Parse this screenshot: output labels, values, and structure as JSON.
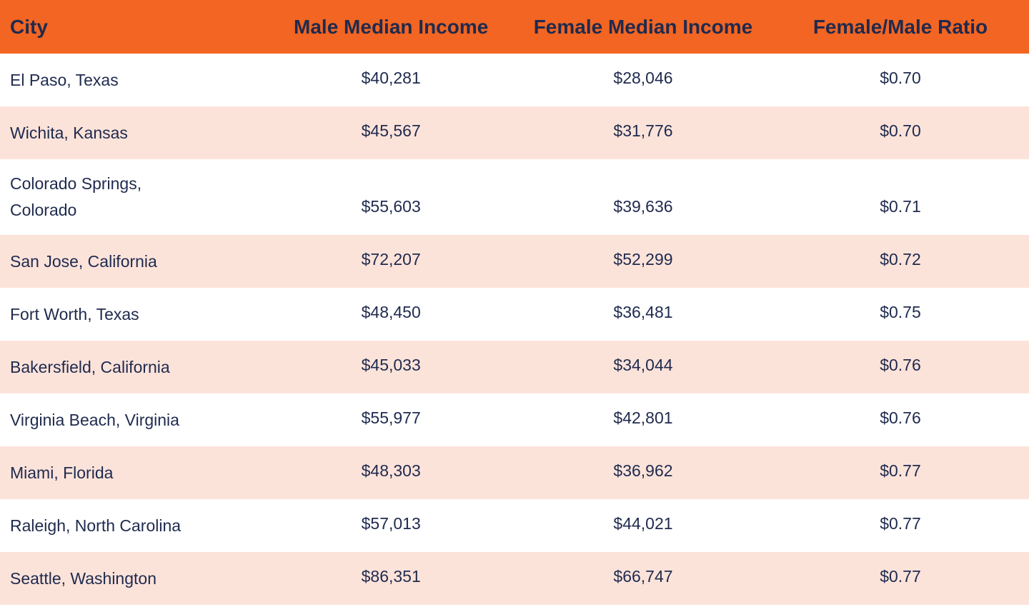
{
  "chart_data": {
    "type": "table",
    "columns": [
      "City",
      "Male Median Income",
      "Female Median Income",
      "Female/Male Ratio"
    ],
    "rows": [
      [
        "El Paso, Texas",
        "$40,281",
        "$28,046",
        "$0.70"
      ],
      [
        "Wichita, Kansas",
        "$45,567",
        "$31,776",
        "$0.70"
      ],
      [
        "Colorado Springs,\nColorado",
        "$55,603",
        "$39,636",
        "$0.71"
      ],
      [
        "San Jose, California",
        "$72,207",
        "$52,299",
        "$0.72"
      ],
      [
        "Fort Worth, Texas",
        "$48,450",
        "$36,481",
        "$0.75"
      ],
      [
        "Bakersfield, California",
        "$45,033",
        "$34,044",
        "$0.76"
      ],
      [
        "Virginia Beach, Virginia",
        "$55,977",
        "$42,801",
        "$0.76"
      ],
      [
        "Miami, Florida",
        "$48,303",
        "$36,962",
        "$0.77"
      ],
      [
        "Raleigh, North Carolina",
        "$57,013",
        "$44,021",
        "$0.77"
      ],
      [
        "Seattle, Washington",
        "$86,351",
        "$66,747",
        "$0.77"
      ]
    ],
    "layout": {
      "header_position": "top",
      "row_striping": "alternating, stripes on even data rows (2nd, 4th, ...)",
      "grid": "off"
    }
  },
  "colors": {
    "header_bg": "#f26522",
    "stripe_bg": "#fce3da",
    "row_bg": "#ffffff",
    "text": "#1f2a4e"
  }
}
